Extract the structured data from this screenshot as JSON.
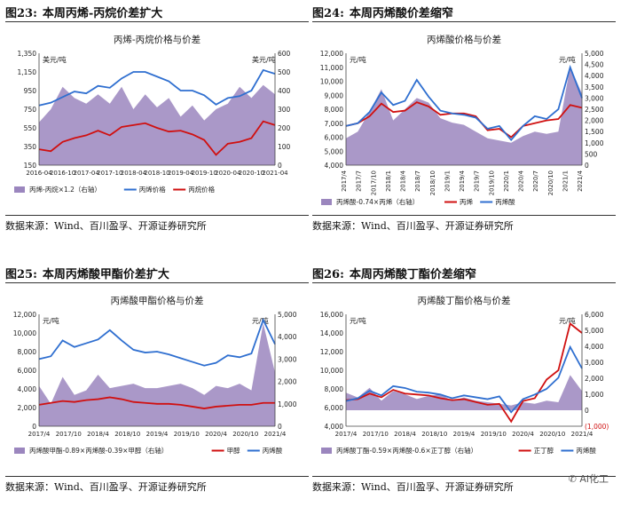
{
  "panels": [
    {
      "fig_no": "图23:",
      "title": "本周丙烯-丙烷价差扩大",
      "source": "数据来源：Wind、百川盈孚、开源证券研究所",
      "colors": {
        "spread": "#9b86be",
        "line1": "#2f6fd0",
        "line2": "#d01010"
      },
      "chart_data": {
        "type": "area+line",
        "title": "丙烯-丙烷价格与价差",
        "unit_label": "美元/吨",
        "y_left_ticks": [
          "1,350",
          "1,150",
          "950",
          "750",
          "550",
          "350",
          "150"
        ],
        "y_left_range": [
          150,
          1350
        ],
        "y_right_ticks": [
          "600",
          "500",
          "400",
          "300",
          "200",
          "100",
          "0"
        ],
        "y_right_range": [
          0,
          600
        ],
        "x_ticks": [
          "2016-04",
          "2016-10",
          "2017-04",
          "2017-10",
          "2018-04",
          "2018-10",
          "2019-04",
          "2019-10",
          "2020-04",
          "2020-10",
          "2021-04"
        ],
        "legend": [
          "丙烯-丙烷×1.2（右轴）",
          "丙烯价格",
          "丙烷价格"
        ],
        "x_values": [
          0,
          0.5,
          1,
          1.5,
          2,
          2.5,
          3,
          3.5,
          4,
          4.5,
          5,
          5.5,
          6,
          6.5,
          7,
          7.5,
          8,
          8.5,
          9,
          9.5,
          10
        ],
        "spread_right": [
          230,
          300,
          420,
          360,
          330,
          380,
          330,
          420,
          300,
          380,
          310,
          360,
          260,
          320,
          240,
          300,
          330,
          420,
          360,
          430,
          380
        ],
        "line1_left": [
          790,
          820,
          880,
          940,
          920,
          1000,
          980,
          1080,
          1150,
          1150,
          1100,
          1050,
          950,
          950,
          900,
          800,
          870,
          890,
          950,
          1170,
          1130
        ],
        "line2_left": [
          320,
          300,
          400,
          440,
          470,
          520,
          470,
          560,
          580,
          600,
          550,
          510,
          520,
          480,
          420,
          260,
          380,
          400,
          440,
          620,
          580
        ]
      }
    },
    {
      "fig_no": "图24:",
      "title": "本周丙烯酸价差缩窄",
      "source": "数据来源：Wind、百川盈孚、开源证券研究所",
      "colors": {
        "spread": "#9b86be",
        "line1": "#d01010",
        "line2": "#2f6fd0"
      },
      "chart_data": {
        "type": "area+line",
        "title": "丙烯酸价格与价差",
        "unit_label": "元/吨",
        "y_left_ticks": [
          "12,000",
          "11,000",
          "10,000",
          "9,000",
          "8,000",
          "7,000",
          "6,000",
          "5,000",
          "4,000"
        ],
        "y_left_range": [
          4000,
          12000
        ],
        "y_right_ticks": [
          "5,000",
          "4,500",
          "4,000",
          "3,500",
          "3,000",
          "2,500",
          "2,000",
          "1,500",
          "1,000",
          "500",
          "0"
        ],
        "y_right_range": [
          0,
          5000
        ],
        "x_ticks": [
          "2017/4",
          "2017/7",
          "2017/10",
          "2018/1",
          "2018/4",
          "2018/7",
          "2018/10",
          "2019/1",
          "2019/4",
          "2019/7",
          "2019/10",
          "2020/1",
          "2020/4",
          "2020/7",
          "2020/10",
          "2021/1",
          "2021/4"
        ],
        "legend": [
          "丙烯酸-0.74×丙烯（右轴）",
          "丙烯",
          "丙烯酸"
        ],
        "x_values": [
          0,
          0.5,
          1,
          1.5,
          2,
          2.5,
          3,
          3.5,
          4,
          4.5,
          5,
          5.5,
          6,
          6.5,
          7,
          7.5,
          8,
          8.5,
          9,
          9.5,
          10
        ],
        "spread_right": [
          1200,
          1500,
          2400,
          3400,
          2000,
          2500,
          3000,
          2800,
          2100,
          1900,
          1800,
          1500,
          1200,
          1100,
          1000,
          1300,
          1500,
          1400,
          1500,
          4400,
          3200
        ],
        "line1_left": [
          6800,
          7000,
          7500,
          8400,
          7800,
          7900,
          8500,
          8200,
          7600,
          7700,
          7700,
          7500,
          6500,
          6600,
          6000,
          6800,
          7000,
          7200,
          7300,
          8300,
          8100
        ],
        "line2_left": [
          6800,
          7000,
          7800,
          9200,
          8300,
          8600,
          10100,
          8900,
          7900,
          7700,
          7600,
          7400,
          6600,
          6800,
          5800,
          6800,
          7500,
          7300,
          8000,
          11000,
          8800
        ]
      }
    },
    {
      "fig_no": "图25:",
      "title": "本周丙烯酸甲酯价差扩大",
      "source": "数据来源：Wind、百川盈孚、开源证券研究所",
      "colors": {
        "spread": "#9b86be",
        "line1": "#d01010",
        "line2": "#2f6fd0"
      },
      "chart_data": {
        "type": "area+line",
        "title": "丙烯酸甲酯价格与价差",
        "unit_label": "元/吨",
        "y_left_ticks": [
          "12,000",
          "10,000",
          "8,000",
          "6,000",
          "4,000",
          "2,000",
          "0"
        ],
        "y_left_range": [
          0,
          12000
        ],
        "y_right_ticks": [
          "5,000",
          "4,000",
          "3,000",
          "2,000",
          "1,000",
          "0"
        ],
        "y_right_range": [
          0,
          5000
        ],
        "x_ticks": [
          "2017/4",
          "2017/10",
          "2018/4",
          "2018/10",
          "2019/4",
          "2019/10",
          "2020/4",
          "2020/10",
          "2021/4"
        ],
        "legend": [
          "丙烯酸甲酯-0.89×丙烯酸-0.39×甲醇（右轴）",
          "甲醇",
          "丙烯酸"
        ],
        "x_values": [
          0,
          0.5,
          1,
          1.5,
          2,
          2.5,
          3,
          3.5,
          4,
          4.5,
          5,
          5.5,
          6,
          6.5,
          7,
          7.5,
          8,
          8.5,
          9,
          9.5,
          10
        ],
        "spread_right": [
          1800,
          1000,
          2200,
          1400,
          1600,
          2300,
          1700,
          1800,
          1900,
          1700,
          1700,
          1800,
          1900,
          1700,
          1400,
          1800,
          1700,
          1900,
          1600,
          4600,
          2400
        ],
        "line1_left": [
          2300,
          2500,
          2700,
          2600,
          2800,
          2900,
          3100,
          2900,
          2600,
          2500,
          2400,
          2400,
          2300,
          2100,
          1900,
          2100,
          2200,
          2300,
          2300,
          2500,
          2500
        ],
        "line2_left": [
          7200,
          7500,
          9200,
          8500,
          8900,
          9300,
          10300,
          9200,
          8200,
          7900,
          8000,
          7700,
          7300,
          6900,
          6500,
          6800,
          7600,
          7400,
          7800,
          11400,
          8800
        ]
      }
    },
    {
      "fig_no": "图26:",
      "title": "本周丙烯酸丁酯价差缩窄",
      "source": "数据来源：Wind、百川盈孚、开源证券研究所",
      "colors": {
        "spread": "#9b86be",
        "line1": "#d01010",
        "line2": "#2f6fd0"
      },
      "chart_data": {
        "type": "area+line",
        "title": "丙烯酸丁酯价格与价差",
        "unit_label": "元/吨",
        "y_left_ticks": [
          "16,000",
          "14,000",
          "12,000",
          "10,000",
          "8,000",
          "6,000",
          "4,000"
        ],
        "y_left_range": [
          4000,
          16000
        ],
        "y_right_ticks": [
          "6,000",
          "5,000",
          "4,000",
          "3,000",
          "2,000",
          "1,000",
          "0",
          "(1,000)"
        ],
        "y_right_range": [
          -1000,
          6000
        ],
        "x_ticks": [
          "2017/4",
          "2017/10",
          "2018/4",
          "2018/10",
          "2019/4",
          "2019/10",
          "2020/4",
          "2020/10",
          "2021/4"
        ],
        "legend": [
          "丙烯酸丁酯-0.59×丙烯酸-0.6×正丁醇（右轴）",
          "正丁醇",
          "丙烯酸"
        ],
        "x_values": [
          0,
          0.5,
          1,
          1.5,
          2,
          2.5,
          3,
          3.5,
          4,
          4.5,
          5,
          5.5,
          6,
          6.5,
          7,
          7.5,
          8,
          8.5,
          9,
          9.5,
          10
        ],
        "spread_right": [
          1100,
          800,
          1400,
          600,
          1200,
          1000,
          700,
          900,
          1000,
          600,
          800,
          600,
          500,
          400,
          300,
          500,
          400,
          600,
          500,
          2200,
          1200
        ],
        "line1_left": [
          6800,
          6900,
          7500,
          7100,
          7900,
          7500,
          7400,
          7300,
          7000,
          6800,
          6900,
          6600,
          6300,
          6400,
          4500,
          6700,
          7000,
          9000,
          10000,
          15000,
          14000
        ],
        "line2_left": [
          6700,
          7000,
          7800,
          7300,
          8300,
          8100,
          7700,
          7600,
          7400,
          7000,
          7300,
          7100,
          6900,
          7200,
          5500,
          6900,
          7400,
          8000,
          9200,
          12500,
          10200
        ]
      }
    }
  ],
  "watermark": "Ai化工"
}
